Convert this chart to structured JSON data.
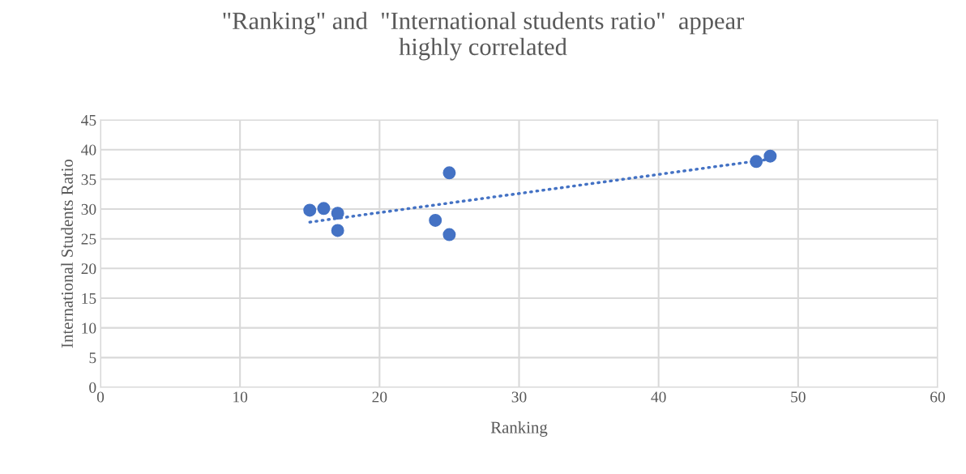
{
  "chart_data": {
    "type": "scatter",
    "title": "\"Ranking\" and  \"International students ratio\"  appear\nhighly correlated",
    "xlabel": "Ranking",
    "ylabel": "International Students Ratio",
    "series": [
      {
        "color": "#4472c4",
        "x": [
          15,
          16,
          17,
          17,
          24,
          25,
          25,
          47,
          48
        ],
        "values": [
          29.8,
          30.1,
          29.3,
          26.4,
          28.1,
          36.1,
          25.7,
          38.0,
          38.9
        ],
        "marker": "circle"
      },
      {
        "type": "line",
        "color": "#4472c4",
        "x": [
          15,
          48
        ],
        "values": [
          27.8,
          38.4
        ],
        "line_style": "dotted",
        "marker": "none"
      }
    ],
    "xlim": [
      0,
      60
    ],
    "xticks": [
      0,
      10,
      20,
      30,
      40,
      50,
      60
    ],
    "ylim": [
      0,
      45
    ],
    "yticks": [
      0,
      5,
      10,
      15,
      20,
      25,
      30,
      35,
      40,
      45
    ],
    "grid": true,
    "legend": false
  }
}
